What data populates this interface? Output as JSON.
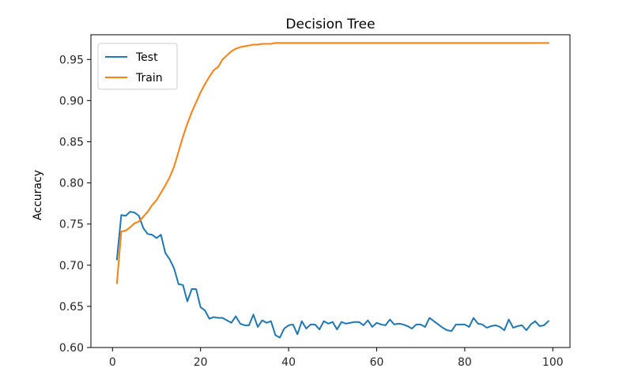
{
  "chart_data": {
    "type": "line",
    "title": "Decision Tree",
    "xlabel": "",
    "ylabel": "Accuracy",
    "xlim": [
      -4.9,
      103.9
    ],
    "ylim": [
      0.6,
      0.98
    ],
    "xticks": [
      0,
      20,
      40,
      60,
      80,
      100
    ],
    "yticks": [
      0.6,
      0.65,
      0.7,
      0.75,
      0.8,
      0.85,
      0.9,
      0.95
    ],
    "grid": false,
    "legend": "top-left",
    "series": [
      {
        "name": "Test",
        "color": "#1f77b4",
        "x": [
          1,
          2,
          3,
          4,
          5,
          6,
          7,
          8,
          9,
          10,
          11,
          12,
          13,
          14,
          15,
          16,
          17,
          18,
          19,
          20,
          21,
          22,
          23,
          24,
          25,
          26,
          27,
          28,
          29,
          30,
          31,
          32,
          33,
          34,
          35,
          36,
          37,
          38,
          39,
          40,
          41,
          42,
          43,
          44,
          45,
          46,
          47,
          48,
          49,
          50,
          51,
          52,
          53,
          54,
          55,
          56,
          57,
          58,
          59,
          60,
          61,
          62,
          63,
          64,
          65,
          66,
          67,
          68,
          69,
          70,
          71,
          72,
          73,
          74,
          75,
          76,
          77,
          78,
          79,
          80,
          81,
          82,
          83,
          84,
          85,
          86,
          87,
          88,
          89,
          90,
          91,
          92,
          93,
          94,
          95,
          96,
          97,
          98,
          99
        ],
        "values": [
          0.707,
          0.761,
          0.76,
          0.765,
          0.764,
          0.76,
          0.745,
          0.738,
          0.737,
          0.733,
          0.737,
          0.715,
          0.707,
          0.696,
          0.677,
          0.676,
          0.656,
          0.671,
          0.671,
          0.649,
          0.645,
          0.635,
          0.637,
          0.636,
          0.636,
          0.633,
          0.63,
          0.638,
          0.629,
          0.627,
          0.627,
          0.64,
          0.625,
          0.633,
          0.63,
          0.632,
          0.615,
          0.612,
          0.623,
          0.627,
          0.628,
          0.616,
          0.632,
          0.623,
          0.628,
          0.628,
          0.622,
          0.632,
          0.629,
          0.631,
          0.622,
          0.631,
          0.629,
          0.63,
          0.631,
          0.631,
          0.627,
          0.633,
          0.625,
          0.63,
          0.628,
          0.627,
          0.634,
          0.628,
          0.629,
          0.628,
          0.626,
          0.623,
          0.628,
          0.628,
          0.625,
          0.636,
          0.632,
          0.628,
          0.624,
          0.621,
          0.62,
          0.628,
          0.628,
          0.628,
          0.625,
          0.636,
          0.629,
          0.628,
          0.624,
          0.626,
          0.627,
          0.625,
          0.621,
          0.634,
          0.624,
          0.626,
          0.627,
          0.621,
          0.628,
          0.632,
          0.626,
          0.627,
          0.632
        ]
      },
      {
        "name": "Train",
        "color": "#ff7f0e",
        "x": [
          1,
          2,
          3,
          4,
          5,
          6,
          7,
          8,
          9,
          10,
          11,
          12,
          13,
          14,
          15,
          16,
          17,
          18,
          19,
          20,
          21,
          22,
          23,
          24,
          25,
          26,
          27,
          28,
          29,
          30,
          31,
          32,
          33,
          34,
          35,
          36,
          37,
          38,
          39,
          40,
          41,
          42,
          43,
          44,
          45,
          46,
          47,
          48,
          49,
          50,
          51,
          52,
          53,
          54,
          55,
          56,
          57,
          58,
          59,
          60,
          61,
          62,
          63,
          64,
          65,
          66,
          67,
          68,
          69,
          70,
          71,
          72,
          73,
          74,
          75,
          76,
          77,
          78,
          79,
          80,
          81,
          82,
          83,
          84,
          85,
          86,
          87,
          88,
          89,
          90,
          91,
          92,
          93,
          94,
          95,
          96,
          97,
          98,
          99
        ],
        "values": [
          0.678,
          0.741,
          0.742,
          0.746,
          0.751,
          0.753,
          0.759,
          0.765,
          0.773,
          0.779,
          0.788,
          0.797,
          0.807,
          0.82,
          0.838,
          0.856,
          0.872,
          0.886,
          0.898,
          0.91,
          0.92,
          0.929,
          0.937,
          0.941,
          0.95,
          0.955,
          0.96,
          0.963,
          0.965,
          0.966,
          0.967,
          0.968,
          0.968,
          0.969,
          0.969,
          0.969,
          0.97,
          0.97,
          0.97,
          0.97,
          0.97,
          0.97,
          0.97,
          0.97,
          0.97,
          0.97,
          0.97,
          0.97,
          0.97,
          0.97,
          0.97,
          0.97,
          0.97,
          0.97,
          0.97,
          0.97,
          0.97,
          0.97,
          0.97,
          0.97,
          0.97,
          0.97,
          0.97,
          0.97,
          0.97,
          0.97,
          0.97,
          0.97,
          0.97,
          0.97,
          0.97,
          0.97,
          0.97,
          0.97,
          0.97,
          0.97,
          0.97,
          0.97,
          0.97,
          0.97,
          0.97,
          0.97,
          0.97,
          0.97,
          0.97,
          0.97,
          0.97,
          0.97,
          0.97,
          0.97,
          0.97,
          0.97,
          0.97,
          0.97,
          0.97,
          0.97,
          0.97,
          0.97,
          0.97
        ]
      }
    ]
  }
}
